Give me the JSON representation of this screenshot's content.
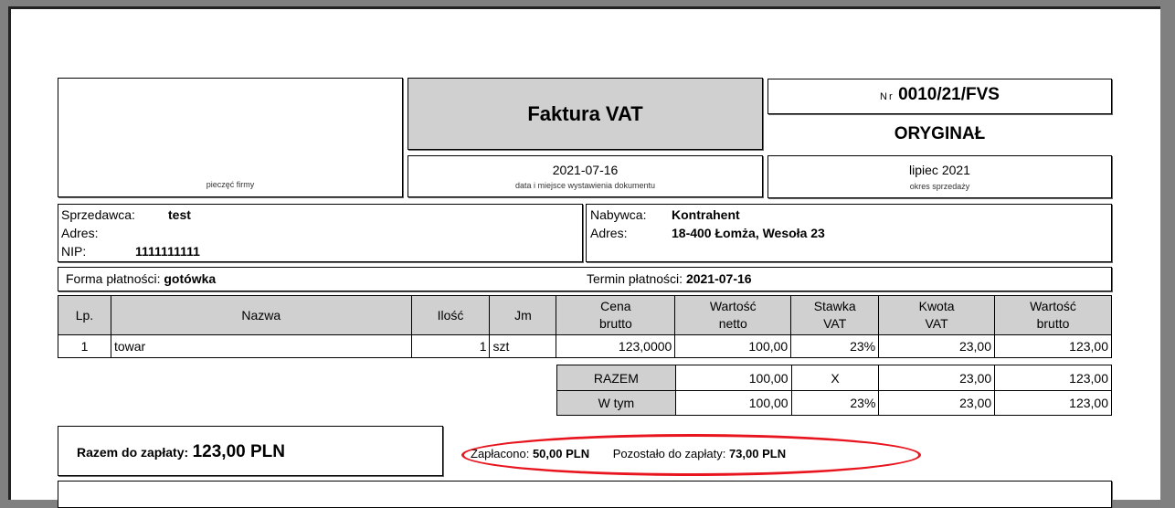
{
  "invoice": {
    "stamp_label": "pieczęć firmy",
    "title": "Faktura VAT",
    "issue_date": "2021-07-16",
    "issue_date_label": "data i miejsce wystawienia dokumentu",
    "number_prefix": "Nr",
    "number": "0010/21/FVS",
    "copy_type": "ORYGINAŁ",
    "sale_period": "lipiec 2021",
    "sale_period_label": "okres sprzedaży"
  },
  "seller": {
    "label": "Sprzedawca:",
    "name": "test",
    "address_label": "Adres:",
    "address": "",
    "nip_label": "NIP:",
    "nip": "1111111111"
  },
  "buyer": {
    "label": "Nabywca:",
    "name": "Kontrahent",
    "address_label": "Adres:",
    "address": "18-400 Łomża, Wesoła 23"
  },
  "payment": {
    "method_label": "Forma płatności:",
    "method": "gotówka",
    "due_label": "Termin płatności:",
    "due": "2021-07-16"
  },
  "table": {
    "headers": [
      [
        "Lp.",
        ""
      ],
      [
        "Nazwa",
        ""
      ],
      [
        "Ilość",
        ""
      ],
      [
        "Jm",
        ""
      ],
      [
        "Cena",
        "brutto"
      ],
      [
        "Wartość",
        "netto"
      ],
      [
        "Stawka",
        "VAT"
      ],
      [
        "Kwota",
        "VAT"
      ],
      [
        "Wartość",
        "brutto"
      ]
    ],
    "rows": [
      [
        "1",
        "towar",
        "1",
        "szt",
        "123,0000",
        "100,00",
        "23%",
        "23,00",
        "123,00"
      ]
    ],
    "summary": [
      [
        "RAZEM",
        "100,00",
        "X",
        "23,00",
        "123,00"
      ],
      [
        "W tym",
        "100,00",
        "23%",
        "23,00",
        "123,00"
      ]
    ]
  },
  "totals": {
    "due_label": "Razem do zapłaty:",
    "due_value": "123,00 PLN",
    "paid_label": "Zapłacono:",
    "paid_value": "50,00 PLN",
    "remaining_label": "Pozostało do zapłaty:",
    "remaining_value": "73,00 PLN",
    "highlight_color": "#e8141e"
  }
}
